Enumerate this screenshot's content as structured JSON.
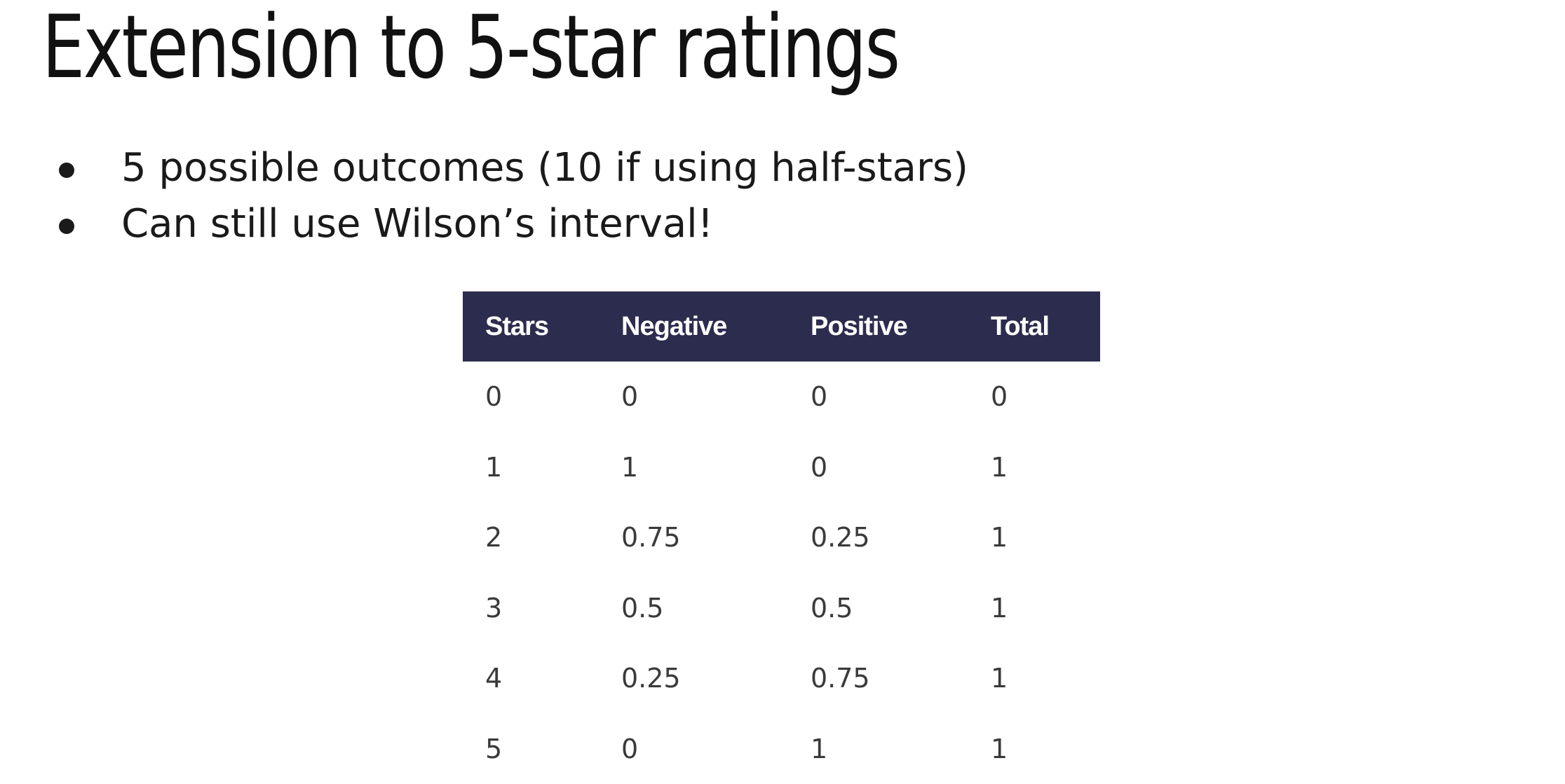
{
  "slide": {
    "title": "Extension to 5-star ratings",
    "bullets": [
      "5 possible outcomes (10 if using half-stars)",
      "Can still use Wilson’s interval!"
    ],
    "table": {
      "headers": [
        "Stars",
        "Negative",
        "Positive",
        "Total"
      ],
      "rows": [
        [
          "0",
          "0",
          "0",
          "0"
        ],
        [
          "1",
          "1",
          "0",
          "1"
        ],
        [
          "2",
          "0.75",
          "0.25",
          "1"
        ],
        [
          "3",
          "0.5",
          "0.5",
          "1"
        ],
        [
          "4",
          "0.25",
          "0.75",
          "1"
        ],
        [
          "5",
          "0",
          "1",
          "1"
        ]
      ],
      "header_bg": "#2c2c4e",
      "header_fg": "#ffffff"
    }
  }
}
